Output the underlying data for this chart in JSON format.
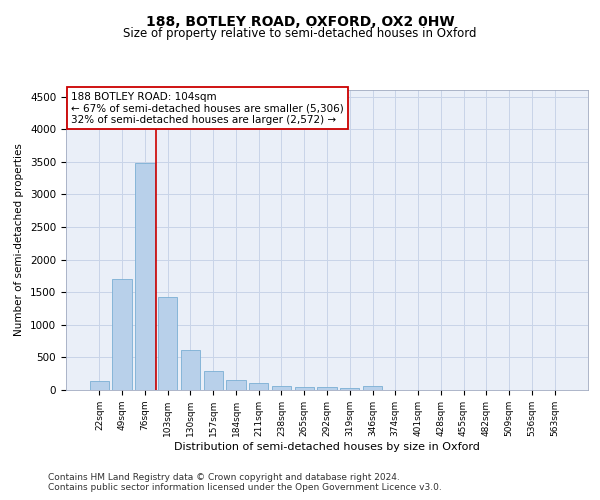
{
  "title": "188, BOTLEY ROAD, OXFORD, OX2 0HW",
  "subtitle": "Size of property relative to semi-detached houses in Oxford",
  "xlabel": "Distribution of semi-detached houses by size in Oxford",
  "ylabel": "Number of semi-detached properties",
  "categories": [
    "22sqm",
    "49sqm",
    "76sqm",
    "103sqm",
    "130sqm",
    "157sqm",
    "184sqm",
    "211sqm",
    "238sqm",
    "265sqm",
    "292sqm",
    "319sqm",
    "346sqm",
    "374sqm",
    "401sqm",
    "428sqm",
    "455sqm",
    "482sqm",
    "509sqm",
    "536sqm",
    "563sqm"
  ],
  "values": [
    140,
    1700,
    3480,
    1430,
    610,
    290,
    155,
    100,
    65,
    40,
    40,
    30,
    55,
    0,
    0,
    0,
    0,
    0,
    0,
    0,
    0
  ],
  "bar_color": "#b8d0ea",
  "bar_edgecolor": "#7aafd4",
  "property_bin_index": 3,
  "annotation_title": "188 BOTLEY ROAD: 104sqm",
  "annotation_line1": "← 67% of semi-detached houses are smaller (5,306)",
  "annotation_line2": "32% of semi-detached houses are larger (2,572) →",
  "vline_color": "#cc0000",
  "box_edgecolor": "#cc0000",
  "ylim": [
    0,
    4600
  ],
  "yticks": [
    0,
    500,
    1000,
    1500,
    2000,
    2500,
    3000,
    3500,
    4000,
    4500
  ],
  "grid_color": "#c8d4e8",
  "background_color": "#eaeff8",
  "footer_line1": "Contains HM Land Registry data © Crown copyright and database right 2024.",
  "footer_line2": "Contains public sector information licensed under the Open Government Licence v3.0.",
  "title_fontsize": 10,
  "subtitle_fontsize": 8.5,
  "xlabel_fontsize": 8,
  "ylabel_fontsize": 7.5,
  "tick_fontsize": 7.5,
  "xtick_fontsize": 6.5,
  "footer_fontsize": 6.5,
  "ann_fontsize": 7.5
}
